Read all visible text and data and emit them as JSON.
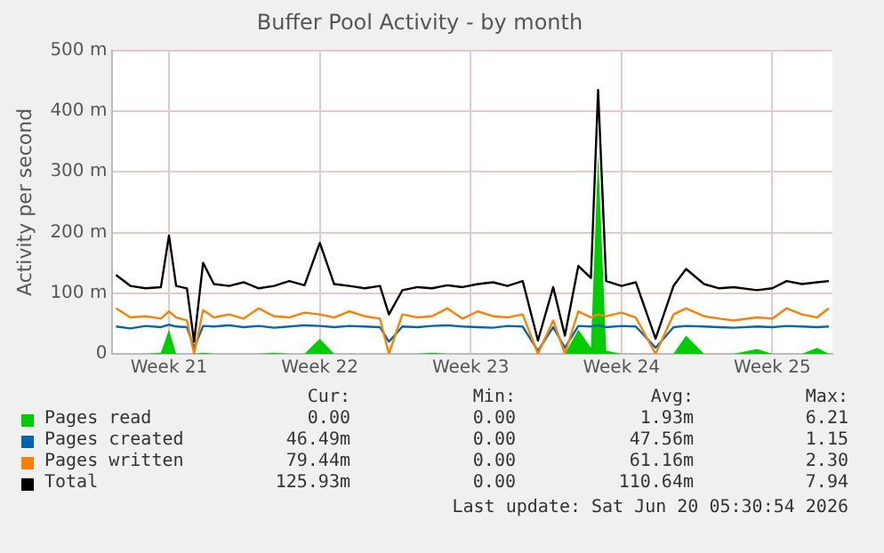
{
  "chart_data": {
    "type": "line",
    "title": "Buffer Pool Activity - by month",
    "ylabel": "Activity per second",
    "x": [
      "2026-05-17T23:00",
      "2026-05-18T15:00",
      "2026-05-19T08:00",
      "2026-05-20T01:00",
      "2026-05-20T10:00",
      "2026-05-20T18:00",
      "2026-05-21T06:00",
      "2026-05-21T14:00",
      "2026-05-22T00:00",
      "2026-05-22T12:00",
      "2026-05-23T05:00",
      "2026-05-23T21:00",
      "2026-05-24T14:00",
      "2026-05-25T07:00",
      "2026-05-26T00:00",
      "2026-05-26T17:00",
      "2026-05-27T10:00",
      "2026-05-28T02:00",
      "2026-05-28T19:00",
      "2026-05-29T12:00",
      "2026-05-30T05:00",
      "2026-05-30T15:00",
      "2026-05-31T06:00",
      "2026-05-31T23:00",
      "2026-06-01T15:00",
      "2026-06-02T08:00",
      "2026-06-03T01:00",
      "2026-06-03T18:00",
      "2026-06-04T11:00",
      "2026-06-05T03:00",
      "2026-06-05T20:00",
      "2026-06-06T13:00",
      "2026-06-07T06:00",
      "2026-06-07T19:00",
      "2026-06-08T10:00",
      "2026-06-09T00:00",
      "2026-06-09T08:00",
      "2026-06-09T17:00",
      "2026-06-10T10:00",
      "2026-06-11T02:00",
      "2026-06-12T00:00",
      "2026-06-12T20:00",
      "2026-06-13T10:00",
      "2026-06-14T06:00",
      "2026-06-14T23:00",
      "2026-06-15T15:00",
      "2026-06-16T17:00",
      "2026-06-17T10:00",
      "2026-06-18T02:00",
      "2026-06-18T19:00",
      "2026-06-19T12:00",
      "2026-06-20T01:00"
    ],
    "series": [
      {
        "name": "Pages read",
        "type": "area",
        "color": "#00cc00",
        "values": [
          0,
          0,
          0,
          2,
          40,
          0,
          0,
          0,
          2,
          0,
          0,
          0,
          0,
          2,
          0,
          0,
          25,
          0,
          0,
          0,
          0,
          0,
          0,
          0,
          2,
          0,
          0,
          0,
          0,
          0,
          0,
          0,
          0,
          0,
          40,
          10,
          330,
          5,
          0,
          0,
          0,
          0,
          30,
          0,
          0,
          0,
          8,
          0,
          0,
          0,
          10,
          0
        ]
      },
      {
        "name": "Pages created",
        "color": "#0066b3",
        "values": [
          45,
          42,
          46,
          44,
          48,
          45,
          44,
          10,
          46,
          45,
          47,
          44,
          46,
          43,
          45,
          47,
          46,
          44,
          46,
          45,
          44,
          20,
          45,
          44,
          46,
          47,
          45,
          44,
          43,
          46,
          45,
          5,
          44,
          10,
          46,
          45,
          47,
          44,
          46,
          45,
          10,
          44,
          46,
          45,
          44,
          43,
          45,
          44,
          46,
          45,
          44,
          45
        ]
      },
      {
        "name": "Pages written",
        "color": "#ff8000",
        "values": [
          75,
          60,
          62,
          58,
          70,
          60,
          55,
          0,
          72,
          60,
          65,
          58,
          75,
          62,
          60,
          68,
          65,
          60,
          70,
          62,
          58,
          0,
          65,
          60,
          62,
          75,
          58,
          70,
          62,
          60,
          65,
          0,
          55,
          0,
          70,
          60,
          65,
          62,
          68,
          60,
          0,
          65,
          75,
          62,
          58,
          55,
          60,
          58,
          75,
          65,
          60,
          75
        ]
      },
      {
        "name": "Total",
        "color": "#000000",
        "values": [
          130,
          112,
          108,
          110,
          195,
          112,
          108,
          20,
          150,
          115,
          112,
          118,
          108,
          112,
          120,
          113,
          183,
          115,
          112,
          108,
          112,
          65,
          105,
          110,
          108,
          113,
          110,
          115,
          118,
          112,
          120,
          22,
          110,
          30,
          145,
          125,
          435,
          120,
          112,
          118,
          25,
          112,
          140,
          115,
          108,
          110,
          105,
          108,
          120,
          115,
          118,
          120
        ]
      }
    ],
    "xlim": [
      "2026-05-17T19:00",
      "2026-06-20T05:00"
    ],
    "xticks": [
      {
        "value": "2026-05-20T10:00",
        "label": "Week 21"
      },
      {
        "value": "2026-05-27T10:00",
        "label": "Week 22"
      },
      {
        "value": "2026-06-03T10:00",
        "label": "Week 23"
      },
      {
        "value": "2026-06-10T10:00",
        "label": "Week 24"
      },
      {
        "value": "2026-06-17T10:00",
        "label": "Week 25"
      }
    ],
    "ylim": [
      0,
      500
    ],
    "yticks": [
      0,
      {
        "value": 100,
        "label": "100 m"
      },
      {
        "value": 200,
        "label": "200 m"
      },
      {
        "value": 300,
        "label": "300 m"
      },
      {
        "value": 400,
        "label": "400 m"
      },
      {
        "value": 500,
        "label": "500 m"
      }
    ],
    "grid": true,
    "legend": "bottom",
    "marker": "none",
    "line_style": "solid",
    "annotations": [
      "Cur:",
      "Min:",
      "Avg:",
      "Max:",
      "0.00",
      "0.00",
      "1.93m",
      "6.21",
      "46.49m",
      "0.00",
      "47.56m",
      "1.15",
      "79.44m",
      "0.00",
      "61.16m",
      "2.30",
      "125.93m",
      "0.00",
      "110.64m",
      "7.94",
      "Last update: Sat Jun 20 05:30:54 2026"
    ]
  }
}
